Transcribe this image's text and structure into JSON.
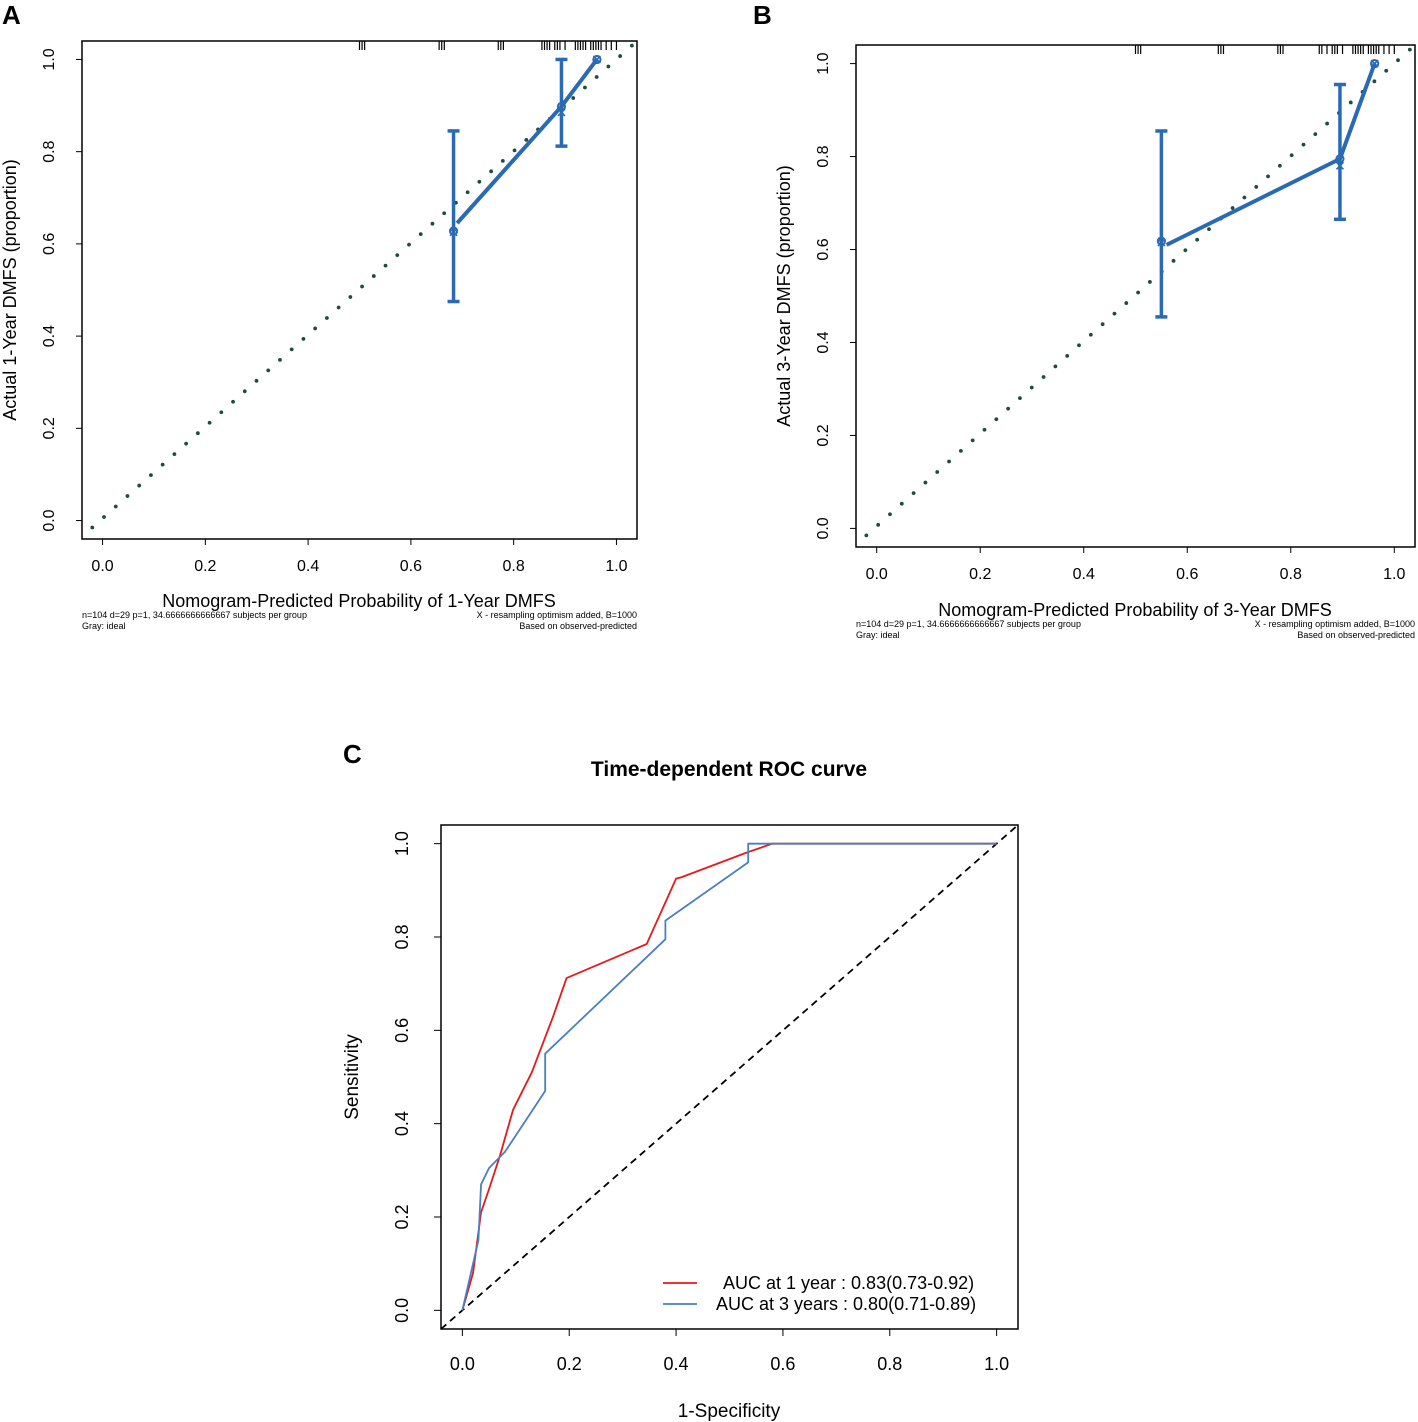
{
  "panels": {
    "A": {
      "letter": "A"
    },
    "B": {
      "letter": "B"
    },
    "C": {
      "letter": "C"
    }
  },
  "chart_data": [
    {
      "id": "A",
      "type": "calibration",
      "xlabel": "Nomogram-Predicted Probability of 1-Year DMFS",
      "ylabel": "Actual 1-Year DMFS (proportion)",
      "xlim": [
        -0.04,
        1.04
      ],
      "ylim": [
        -0.04,
        1.04
      ],
      "xticks": [
        "0.0",
        "0.2",
        "0.4",
        "0.6",
        "0.8",
        "1.0"
      ],
      "yticks": [
        "0.0",
        "0.2",
        "0.4",
        "0.6",
        "0.8",
        "1.0"
      ],
      "ideal_line": [
        [
          -0.02,
          -0.015
        ],
        [
          1.03,
          1.03
        ]
      ],
      "points": [
        {
          "x": 0.683,
          "y": 0.628,
          "lo": 0.475,
          "hi": 0.845,
          "corrected": 0.625
        },
        {
          "x": 0.893,
          "y": 0.898,
          "lo": 0.812,
          "hi": 1.0,
          "corrected": 0.885
        },
        {
          "x": 0.962,
          "y": 1.0,
          "lo": 1.0,
          "hi": 1.0,
          "corrected": 1.0
        }
      ],
      "line_start": [
        0.69,
        0.645
      ],
      "rug": [
        0.5,
        0.505,
        0.51,
        0.655,
        0.66,
        0.665,
        0.77,
        0.775,
        0.78,
        0.855,
        0.86,
        0.865,
        0.87,
        0.88,
        0.885,
        0.89,
        0.9,
        0.92,
        0.925,
        0.93,
        0.935,
        0.94,
        0.95,
        0.955,
        0.96,
        0.965,
        0.97,
        0.98,
        0.99,
        1.0
      ],
      "note_left_1": "n=104 d=29 p=1, 34.6666666666667 subjects per group",
      "note_left_2": "Gray: ideal",
      "note_right_1": "X - resampling optimism added, B=1000",
      "note_right_2": "Based on observed-predicted"
    },
    {
      "id": "B",
      "type": "calibration",
      "xlabel": "Nomogram-Predicted Probability of 3-Year DMFS",
      "ylabel": "Actual 3-Year DMFS (proportion)",
      "xlim": [
        -0.04,
        1.04
      ],
      "ylim": [
        -0.04,
        1.04
      ],
      "xticks": [
        "0.0",
        "0.2",
        "0.4",
        "0.6",
        "0.8",
        "1.0"
      ],
      "yticks": [
        "0.0",
        "0.2",
        "0.4",
        "0.6",
        "0.8",
        "1.0"
      ],
      "ideal_line": [
        [
          -0.02,
          -0.015
        ],
        [
          1.03,
          1.03
        ]
      ],
      "points": [
        {
          "x": 0.55,
          "y": 0.618,
          "lo": 0.455,
          "hi": 0.855,
          "corrected": 0.615
        },
        {
          "x": 0.895,
          "y": 0.795,
          "lo": 0.665,
          "hi": 0.955,
          "corrected": 0.78
        },
        {
          "x": 0.962,
          "y": 1.0,
          "lo": 1.0,
          "hi": 1.0,
          "corrected": 1.0
        }
      ],
      "line_start": [
        0.56,
        0.61
      ],
      "rug": [
        0.5,
        0.505,
        0.51,
        0.66,
        0.665,
        0.67,
        0.775,
        0.78,
        0.785,
        0.855,
        0.86,
        0.87,
        0.88,
        0.885,
        0.89,
        0.9,
        0.92,
        0.925,
        0.93,
        0.935,
        0.94,
        0.95,
        0.955,
        0.96,
        0.965,
        0.97,
        0.98,
        0.99,
        1.0
      ],
      "note_left_1": "n=104 d=29 p=1, 34.6666666666667 subjects per group",
      "note_left_2": "Gray: ideal",
      "note_right_1": "X - resampling optimism added, B=1000",
      "note_right_2": "Based on observed-predicted"
    },
    {
      "id": "C",
      "type": "line",
      "title": "Time-dependent ROC curve",
      "xlabel": "1-Specificity",
      "ylabel": "Sensitivity",
      "xlim": [
        -0.04,
        1.04
      ],
      "ylim": [
        -0.04,
        1.04
      ],
      "xticks": [
        "0.0",
        "0.2",
        "0.4",
        "0.6",
        "0.8",
        "1.0"
      ],
      "yticks": [
        "0.0",
        "0.2",
        "0.4",
        "0.6",
        "0.8",
        "1.0"
      ],
      "series": [
        {
          "name": "AUC at 1 year : 0.83(0.73-0.92)",
          "color": "#e41a1c",
          "points": [
            [
              0,
              0
            ],
            [
              0.02,
              0.08
            ],
            [
              0.035,
              0.21
            ],
            [
              0.05,
              0.26
            ],
            [
              0.07,
              0.33
            ],
            [
              0.095,
              0.43
            ],
            [
              0.13,
              0.51
            ],
            [
              0.17,
              0.63
            ],
            [
              0.195,
              0.712
            ],
            [
              0.345,
              0.785
            ],
            [
              0.4,
              0.925
            ],
            [
              0.41,
              0.928
            ],
            [
              0.53,
              0.98
            ],
            [
              0.58,
              1.0
            ],
            [
              1.0,
              1.0
            ]
          ]
        },
        {
          "name": "AUC at 3 years : 0.80(0.71-0.89)",
          "color": "#4a7fc1",
          "points": [
            [
              0,
              0
            ],
            [
              0.03,
              0.15
            ],
            [
              0.035,
              0.27
            ],
            [
              0.05,
              0.305
            ],
            [
              0.08,
              0.34
            ],
            [
              0.155,
              0.47
            ],
            [
              0.155,
              0.55
            ],
            [
              0.38,
              0.795
            ],
            [
              0.38,
              0.835
            ],
            [
              0.535,
              0.96
            ],
            [
              0.535,
              1.0
            ],
            [
              1.0,
              1.0
            ]
          ]
        }
      ],
      "diagonal": [
        [
          -0.04,
          -0.04
        ],
        [
          1.04,
          1.04
        ]
      ],
      "legend_position": "bottom-right"
    }
  ]
}
